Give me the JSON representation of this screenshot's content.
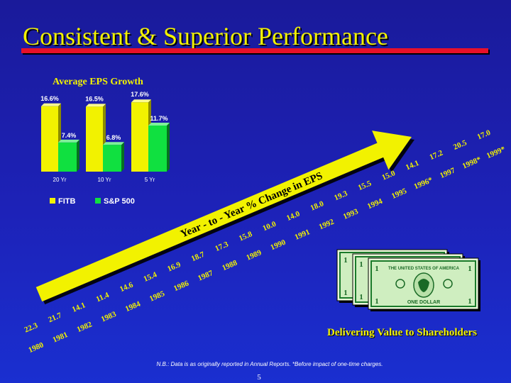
{
  "slide": {
    "title": "Consistent & Superior Performance",
    "footnote": "N.B.: Data is as originally reported in Annual Reports. *Before impact of one-time charges.",
    "page_number": "5",
    "caption": "Delivering Value to Shareholders"
  },
  "bill": {
    "header_text": "THE UNITED STATES OF AMERICA",
    "footer_text": "ONE DOLLAR",
    "denomination": "1"
  },
  "colors": {
    "title": "#f2f200",
    "title_bar": "#e8102a",
    "fitb": "#f2f200",
    "sp500": "#10e040",
    "arrow": "#f2f200"
  },
  "chart_data": [
    {
      "type": "bar",
      "title": "Average EPS Growth",
      "categories": [
        "20 Yr",
        "10 Yr",
        "5 Yr"
      ],
      "series": [
        {
          "name": "FITB",
          "values": [
            16.6,
            16.5,
            17.6
          ],
          "labels": [
            "16.6%",
            "16.5%",
            "17.6%"
          ]
        },
        {
          "name": "S&P 500",
          "values": [
            7.4,
            6.8,
            11.7
          ],
          "labels": [
            "7.4%",
            "6.8%",
            "11.7%"
          ]
        }
      ],
      "ylim": [
        0,
        18
      ],
      "legend": "bottom"
    },
    {
      "type": "line",
      "title": "Year - to - Year % Change in EPS",
      "x": [
        "1980",
        "1981",
        "1982",
        "1983",
        "1984",
        "1985",
        "1986",
        "1987",
        "1988",
        "1989",
        "1990",
        "1991",
        "1992",
        "1993",
        "1994",
        "1995",
        "1996*",
        "1997",
        "1998*",
        "1999*"
      ],
      "values": [
        "22.3",
        "21.7",
        "14.1",
        "11.4",
        "14.6",
        "15.4",
        "16.9",
        "18.7",
        "17.3",
        "15.8",
        "10.0",
        "14.0",
        "18.0",
        "19.3",
        "15.5",
        "15.0",
        "14.1",
        "17.2",
        "20.5",
        "17.0"
      ]
    }
  ]
}
